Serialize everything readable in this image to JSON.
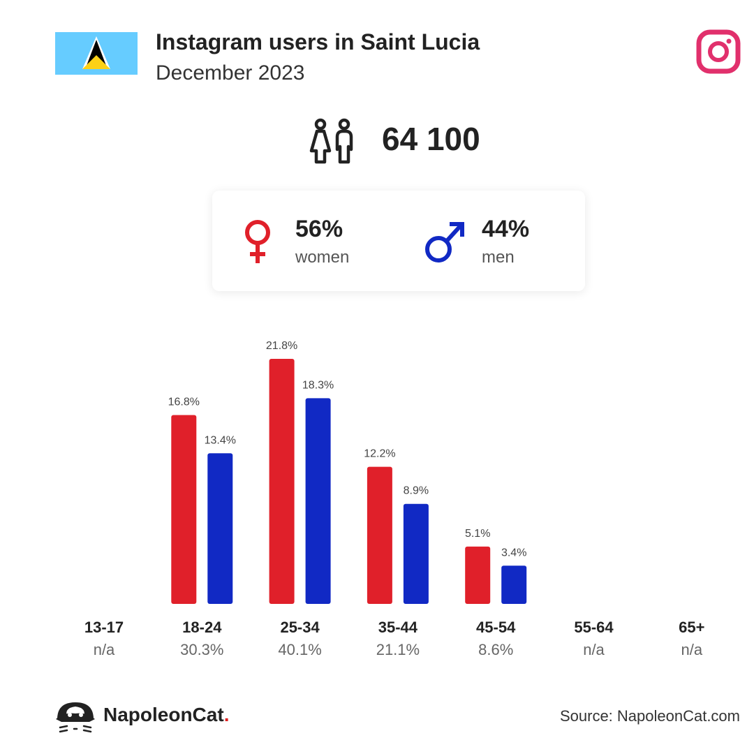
{
  "header": {
    "title": "Instagram users in Saint Lucia",
    "subtitle": "December 2023"
  },
  "total": {
    "value": "64 100"
  },
  "gender": {
    "women": {
      "percent": "56%",
      "label": "women",
      "color": "#e0202a"
    },
    "men": {
      "percent": "44%",
      "label": "men",
      "color": "#1129c4"
    }
  },
  "chart_data": {
    "type": "bar",
    "categories": [
      "13-17",
      "18-24",
      "25-34",
      "35-44",
      "45-54",
      "55-64",
      "65+"
    ],
    "totals": [
      "n/a",
      "30.3%",
      "40.1%",
      "21.1%",
      "8.6%",
      "n/a",
      "n/a"
    ],
    "series": [
      {
        "name": "women",
        "color": "#e0202a",
        "values": [
          null,
          16.8,
          21.8,
          12.2,
          5.1,
          null,
          null
        ],
        "labels": [
          "",
          "16.8%",
          "21.8%",
          "12.2%",
          "5.1%",
          "",
          ""
        ]
      },
      {
        "name": "men",
        "color": "#1129c4",
        "values": [
          null,
          13.4,
          18.3,
          8.9,
          3.4,
          null,
          null
        ],
        "labels": [
          "",
          "13.4%",
          "18.3%",
          "8.9%",
          "3.4%",
          "",
          ""
        ]
      }
    ],
    "ylim": [
      0,
      25
    ],
    "grid": false
  },
  "footer": {
    "brand_main": "NapoleonCat",
    "brand_dot": ".",
    "source": "Source: NapoleonCat.com"
  }
}
